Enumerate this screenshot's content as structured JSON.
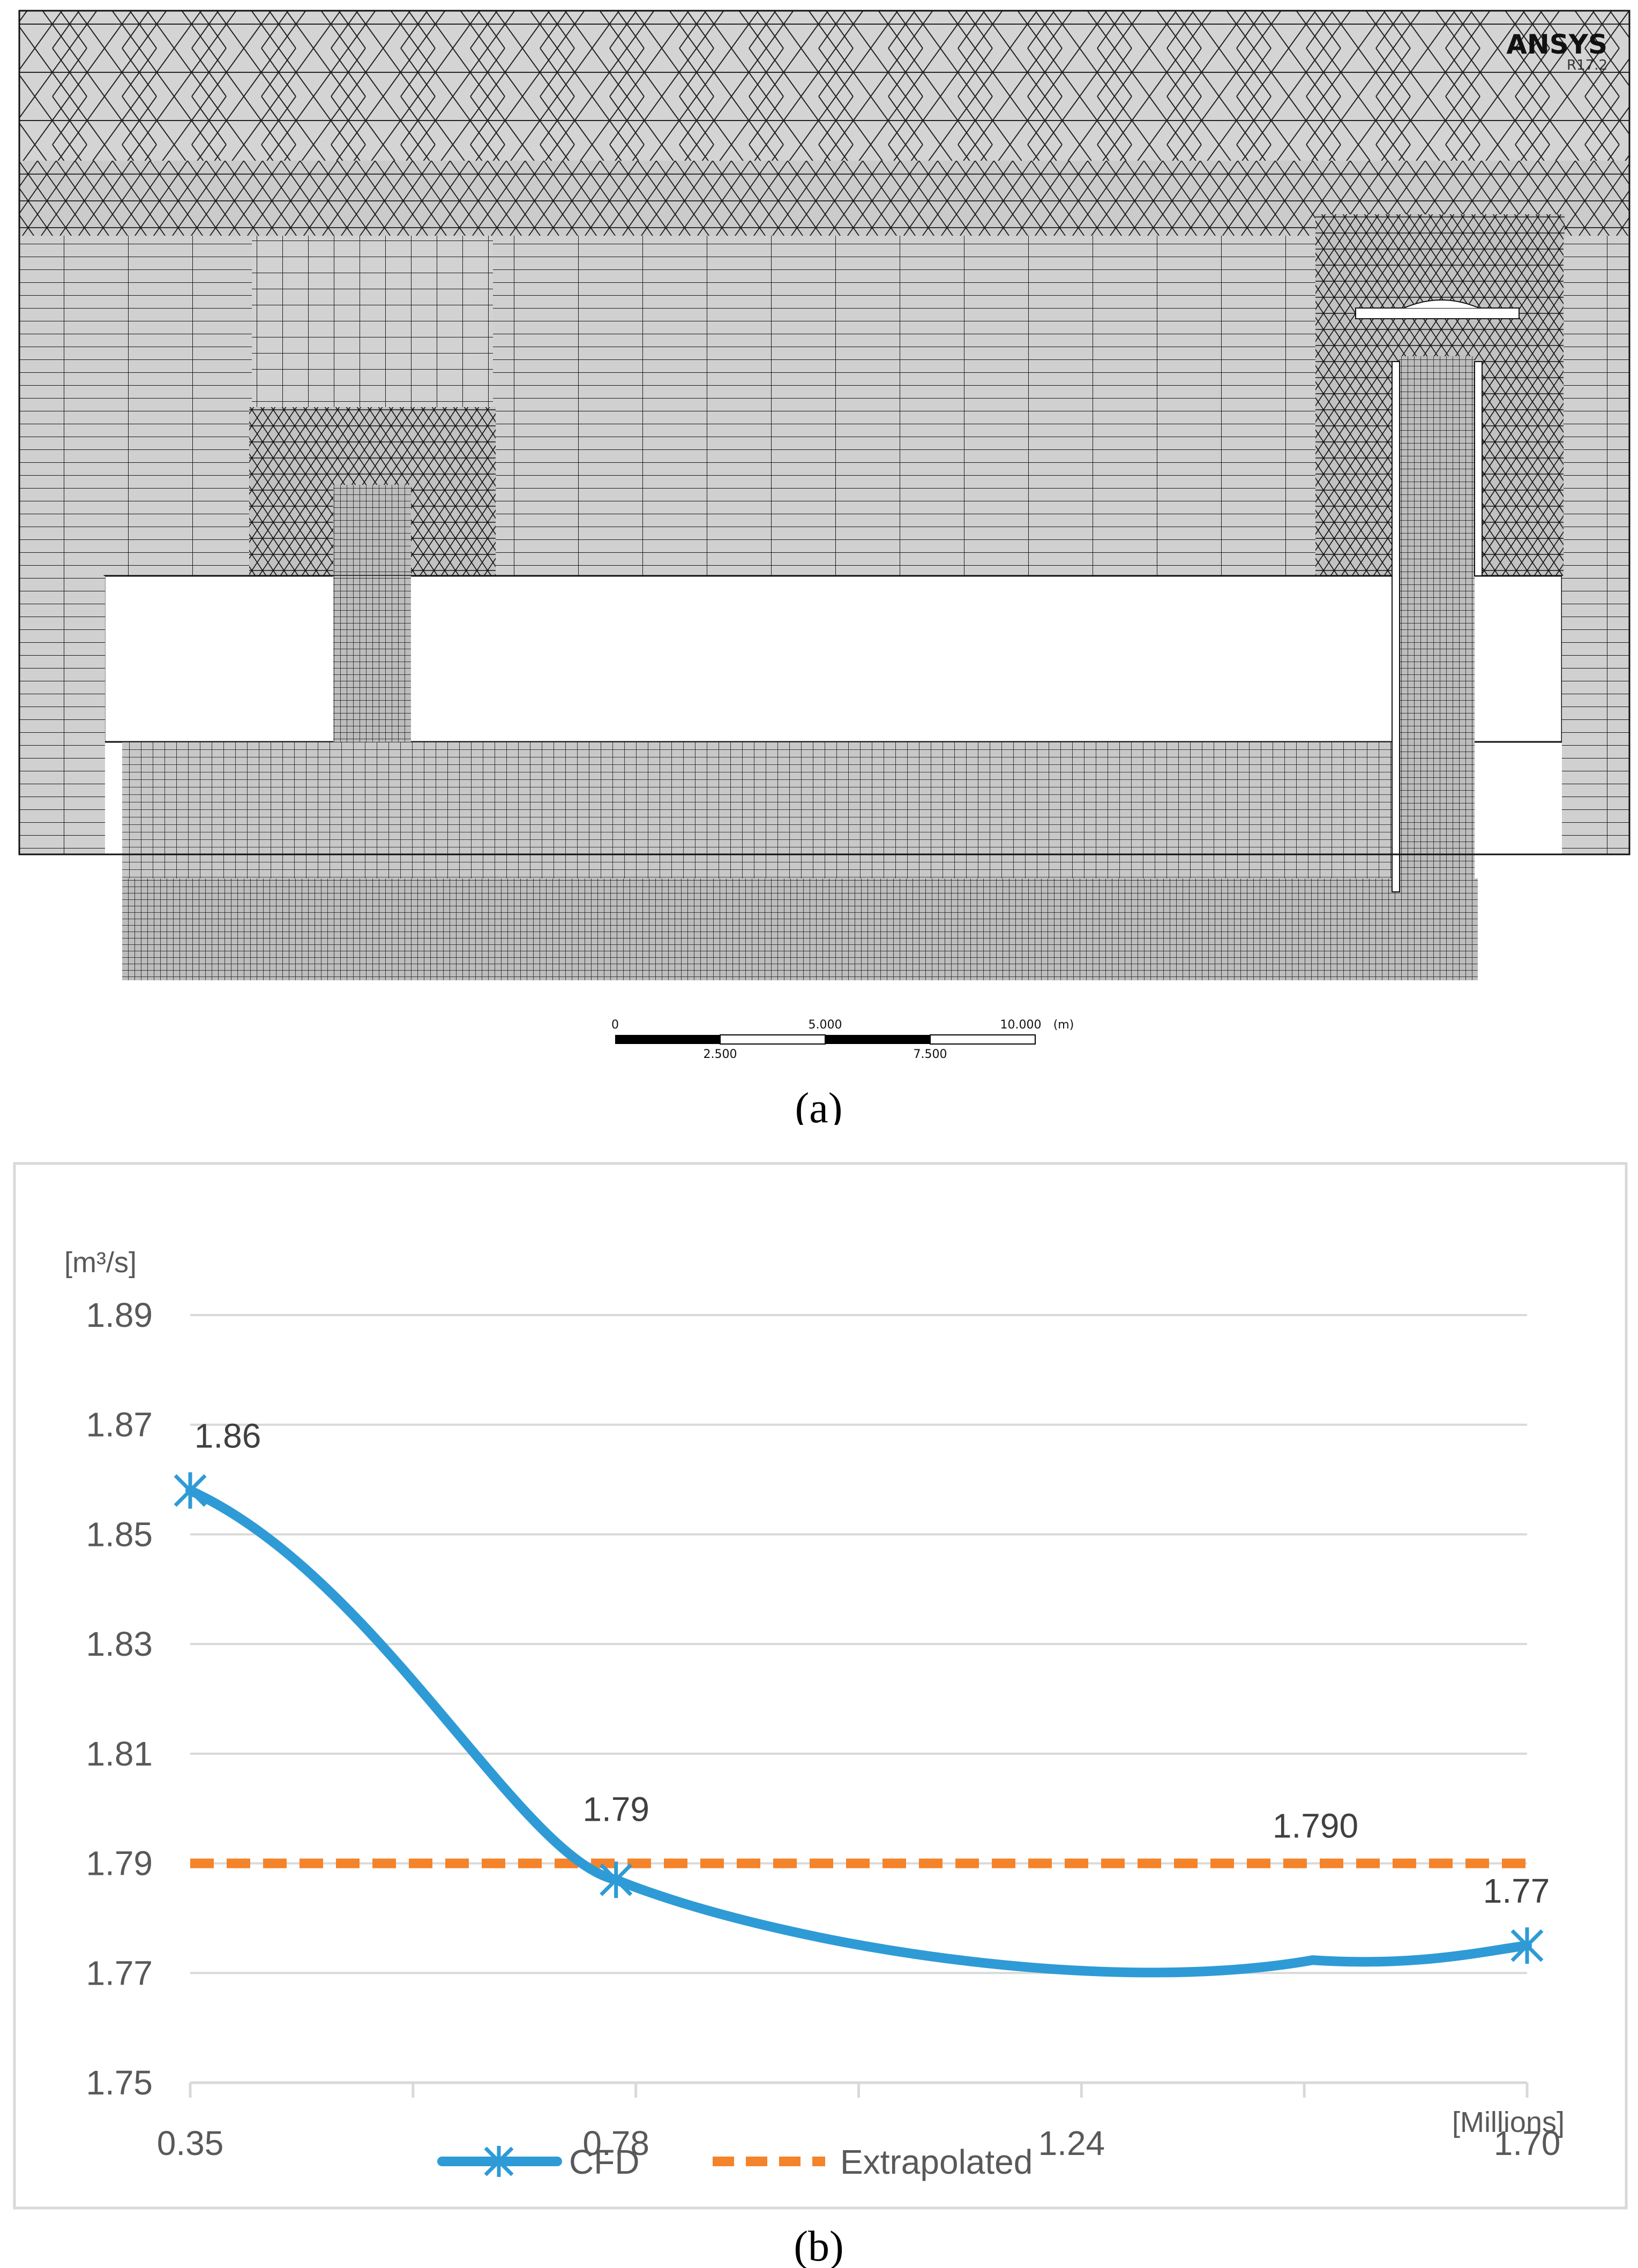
{
  "figure_a": {
    "caption": "(a)",
    "software": "ANSYS",
    "version": "R17.2",
    "scale_bar": {
      "labels_top": [
        "0",
        "5.000",
        "10.000",
        "(m)"
      ],
      "labels_bottom": [
        "2.500",
        "7.500"
      ]
    }
  },
  "figure_b": {
    "caption": "(b)",
    "y_unit": "[m³/s]",
    "x_unit": "[Millions]"
  },
  "chart_data": {
    "type": "line",
    "title": "",
    "xlabel": "",
    "ylabel": "",
    "x_unit": "[Millions]",
    "y_unit": "[m³/s]",
    "x_ticks": [
      "0.35",
      "0.78",
      "1.24",
      "1.70"
    ],
    "y_ticks": [
      "1.75",
      "1.77",
      "1.79",
      "1.81",
      "1.83",
      "1.85",
      "1.87",
      "1.89"
    ],
    "xlim": [
      0.35,
      1.7
    ],
    "ylim": [
      1.75,
      1.89
    ],
    "grid": true,
    "legend_position": "bottom",
    "series": [
      {
        "name": "CFD",
        "color": "#2E9BD6",
        "marker": "asterisk",
        "style": "solid",
        "x": [
          0.35,
          0.78,
          1.7
        ],
        "y": [
          1.858,
          1.787,
          1.775
        ],
        "labels": [
          "1.86",
          "1.79",
          "1.77"
        ]
      },
      {
        "name": "Extrapolated",
        "color": "#F5832A",
        "style": "dashed",
        "x": [
          0.35,
          1.7
        ],
        "y": [
          1.79,
          1.79
        ],
        "labels": [
          "1.790"
        ]
      }
    ]
  }
}
